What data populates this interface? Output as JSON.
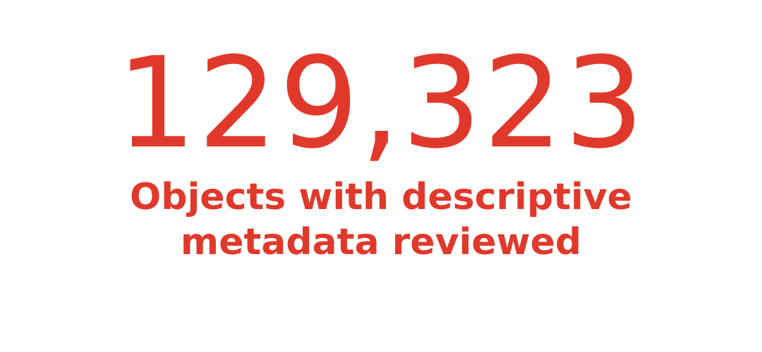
{
  "stat": {
    "value": "129,323",
    "caption": "Objects with descriptive metadata reviewed"
  },
  "colors": {
    "accent": "#e0392b",
    "background": "#ffffff"
  }
}
